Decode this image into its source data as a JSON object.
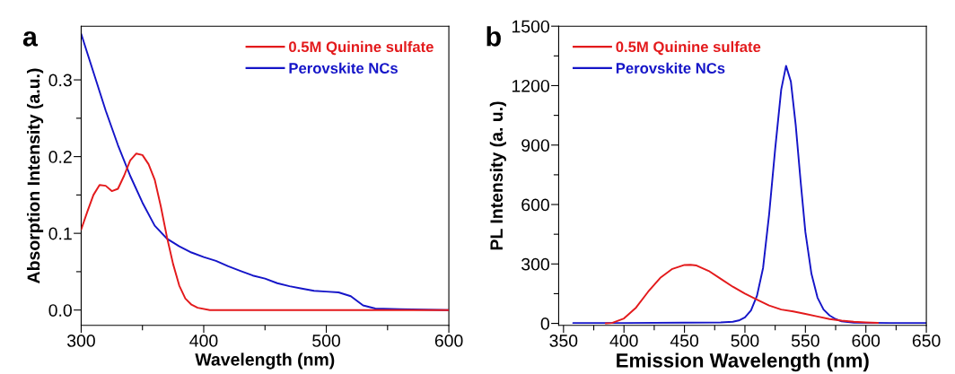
{
  "chart_data": [
    {
      "type": "line",
      "title": "a",
      "xlabel": "Wavelength (nm)",
      "ylabel": "Absorption Intensity (a.u.)",
      "xlim": [
        300,
        600
      ],
      "xticks": [
        300,
        {
          "value": 350,
          "label": null
        },
        400,
        {
          "value": 450,
          "label": null
        },
        500,
        {
          "value": 550,
          "label": null
        },
        600
      ],
      "ylim": [
        -0.02,
        0.37
      ],
      "yticks": [
        {
          "value": 0,
          "label": "0.0"
        },
        {
          "value": 0.05,
          "label": null
        },
        0.1,
        {
          "value": 0.15,
          "label": null
        },
        0.2,
        {
          "value": 0.25,
          "label": null
        },
        0.3
      ],
      "legend": "top right",
      "grid": false,
      "series": [
        {
          "name": "0.5M Quinine sulfate",
          "color": "#e31a1c",
          "x": [
            300,
            305,
            310,
            315,
            320,
            325,
            330,
            335,
            340,
            345,
            350,
            355,
            360,
            365,
            370,
            375,
            380,
            385,
            390,
            395,
            405,
            600
          ],
          "values": [
            0.105,
            0.128,
            0.15,
            0.163,
            0.162,
            0.155,
            0.158,
            0.175,
            0.195,
            0.204,
            0.202,
            0.19,
            0.17,
            0.135,
            0.095,
            0.06,
            0.032,
            0.015,
            0.007,
            0.003,
            0.0,
            0.0
          ]
        },
        {
          "name": "Perovskite NCs",
          "color": "#1515c8",
          "x": [
            300,
            310,
            320,
            330,
            340,
            350,
            360,
            370,
            380,
            390,
            400,
            410,
            420,
            430,
            440,
            450,
            460,
            470,
            480,
            490,
            500,
            510,
            520,
            530,
            540,
            560,
            600
          ],
          "values": [
            0.36,
            0.31,
            0.26,
            0.215,
            0.175,
            0.14,
            0.11,
            0.093,
            0.083,
            0.075,
            0.069,
            0.064,
            0.057,
            0.051,
            0.045,
            0.041,
            0.035,
            0.031,
            0.028,
            0.025,
            0.024,
            0.023,
            0.018,
            0.006,
            0.002,
            0.001,
            0.0
          ]
        }
      ]
    },
    {
      "type": "line",
      "title": "b",
      "xlabel": "Emission Wavelength (nm)",
      "ylabel": "PL Intensity (a. u.)",
      "xlim": [
        346,
        650
      ],
      "xticks": [
        350,
        {
          "value": 375,
          "label": null
        },
        400,
        {
          "value": 425,
          "label": null
        },
        450,
        {
          "value": 475,
          "label": null
        },
        500,
        {
          "value": 525,
          "label": null
        },
        550,
        {
          "value": 575,
          "label": null
        },
        600,
        {
          "value": 625,
          "label": null
        },
        650
      ],
      "ylim": [
        -10,
        1500
      ],
      "yticks": [
        0,
        {
          "value": 150,
          "label": null
        },
        300,
        {
          "value": 450,
          "label": null
        },
        600,
        {
          "value": 750,
          "label": null
        },
        900,
        {
          "value": 1050,
          "label": null
        },
        1200,
        {
          "value": 1350,
          "label": null
        },
        1500
      ],
      "legend": "top left",
      "grid": false,
      "series": [
        {
          "name": "0.5M Quinine sulfate",
          "color": "#e31a1c",
          "x": [
            385,
            390,
            400,
            410,
            420,
            430,
            440,
            450,
            455,
            460,
            470,
            480,
            490,
            500,
            510,
            520,
            530,
            540,
            550,
            560,
            570,
            580,
            590,
            600,
            610
          ],
          "values": [
            0,
            2,
            25,
            80,
            160,
            230,
            275,
            295,
            296,
            292,
            265,
            225,
            185,
            150,
            120,
            90,
            70,
            60,
            48,
            35,
            22,
            14,
            8,
            5,
            3
          ]
        },
        {
          "name": "Perovskite NCs",
          "color": "#1515c8",
          "x": [
            358,
            400,
            450,
            480,
            490,
            495,
            500,
            505,
            510,
            515,
            520,
            525,
            530,
            534,
            538,
            542,
            546,
            550,
            555,
            560,
            565,
            570,
            575,
            580,
            590,
            620,
            650
          ],
          "values": [
            2,
            2,
            4,
            5,
            8,
            15,
            30,
            65,
            140,
            280,
            550,
            880,
            1180,
            1300,
            1220,
            1000,
            720,
            460,
            250,
            130,
            70,
            40,
            22,
            10,
            4,
            2,
            2
          ]
        }
      ]
    }
  ]
}
